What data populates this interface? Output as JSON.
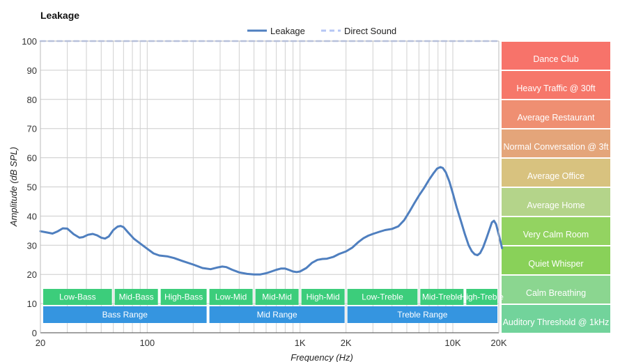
{
  "chart_data": {
    "type": "line",
    "title": "Leakage",
    "xlabel": "Frequency (Hz)",
    "ylabel": "Amplitude (dB SPL)",
    "x_scale": "log",
    "xlim": [
      20,
      20000
    ],
    "ylim": [
      0,
      100
    ],
    "grid": true,
    "legend": "top-center",
    "x_ticks": [
      {
        "value": 20,
        "label": "20"
      },
      {
        "value": 100,
        "label": "100"
      },
      {
        "value": 1000,
        "label": "1K"
      },
      {
        "value": 2000,
        "label": "2K"
      },
      {
        "value": 10000,
        "label": "10K"
      },
      {
        "value": 20000,
        "label": "20K"
      }
    ],
    "y_ticks": [
      0,
      10,
      20,
      30,
      40,
      50,
      60,
      70,
      80,
      90,
      100
    ],
    "series": [
      {
        "name": "Leakage",
        "color": "#4f7fbf",
        "points": [
          [
            20,
            34.8
          ],
          [
            22,
            34.4
          ],
          [
            24,
            34.0
          ],
          [
            26,
            34.8
          ],
          [
            28,
            35.8
          ],
          [
            30,
            35.7
          ],
          [
            33,
            33.8
          ],
          [
            36,
            32.6
          ],
          [
            38,
            32.8
          ],
          [
            41,
            33.6
          ],
          [
            44,
            33.9
          ],
          [
            47,
            33.4
          ],
          [
            50,
            32.6
          ],
          [
            53,
            32.3
          ],
          [
            56,
            33.0
          ],
          [
            60,
            35.2
          ],
          [
            64,
            36.4
          ],
          [
            67,
            36.6
          ],
          [
            70,
            36.2
          ],
          [
            75,
            34.4
          ],
          [
            82,
            32.2
          ],
          [
            90,
            30.6
          ],
          [
            100,
            28.8
          ],
          [
            110,
            27.2
          ],
          [
            120,
            26.5
          ],
          [
            135,
            26.2
          ],
          [
            150,
            25.6
          ],
          [
            170,
            24.6
          ],
          [
            200,
            23.4
          ],
          [
            230,
            22.2
          ],
          [
            260,
            21.8
          ],
          [
            290,
            22.4
          ],
          [
            310,
            22.7
          ],
          [
            330,
            22.5
          ],
          [
            360,
            21.6
          ],
          [
            400,
            20.7
          ],
          [
            450,
            20.2
          ],
          [
            500,
            20.0
          ],
          [
            550,
            20.0
          ],
          [
            600,
            20.4
          ],
          [
            650,
            21.0
          ],
          [
            700,
            21.6
          ],
          [
            750,
            22.0
          ],
          [
            800,
            22.0
          ],
          [
            850,
            21.5
          ],
          [
            900,
            21.0
          ],
          [
            950,
            20.8
          ],
          [
            1000,
            21.0
          ],
          [
            1100,
            22.2
          ],
          [
            1200,
            24.0
          ],
          [
            1300,
            25.0
          ],
          [
            1400,
            25.3
          ],
          [
            1500,
            25.4
          ],
          [
            1650,
            26.0
          ],
          [
            1800,
            27.0
          ],
          [
            2000,
            27.9
          ],
          [
            2200,
            29.2
          ],
          [
            2400,
            31.0
          ],
          [
            2600,
            32.4
          ],
          [
            2800,
            33.3
          ],
          [
            3000,
            33.9
          ],
          [
            3300,
            34.6
          ],
          [
            3600,
            35.2
          ],
          [
            4000,
            35.6
          ],
          [
            4400,
            36.5
          ],
          [
            4800,
            38.6
          ],
          [
            5200,
            41.5
          ],
          [
            5600,
            44.4
          ],
          [
            6000,
            47.0
          ],
          [
            6500,
            49.7
          ],
          [
            7000,
            52.5
          ],
          [
            7500,
            54.8
          ],
          [
            7900,
            56.3
          ],
          [
            8300,
            56.8
          ],
          [
            8600,
            56.5
          ],
          [
            9000,
            55.0
          ],
          [
            9500,
            51.8
          ],
          [
            10000,
            47.8
          ],
          [
            10600,
            43.0
          ],
          [
            11300,
            38.3
          ],
          [
            12000,
            33.8
          ],
          [
            12700,
            30.0
          ],
          [
            13300,
            28.0
          ],
          [
            13900,
            26.9
          ],
          [
            14500,
            26.6
          ],
          [
            15100,
            27.3
          ],
          [
            15800,
            29.3
          ],
          [
            16600,
            32.4
          ],
          [
            17400,
            35.5
          ],
          [
            18000,
            37.8
          ],
          [
            18600,
            38.4
          ],
          [
            19200,
            37.2
          ],
          [
            19800,
            34.5
          ],
          [
            20500,
            31.3
          ],
          [
            21000,
            29.0
          ]
        ]
      },
      {
        "name": "Direct Sound",
        "color": "#b5c6f4",
        "dashed": true,
        "points": [
          [
            20,
            100
          ],
          [
            20000,
            100
          ]
        ]
      }
    ],
    "ranges_row1": [
      {
        "label": "Low-Bass",
        "from": 20,
        "to": 60
      },
      {
        "label": "Mid-Bass",
        "from": 60,
        "to": 120
      },
      {
        "label": "High-Bass",
        "from": 120,
        "to": 250
      },
      {
        "label": "Low-Mid",
        "from": 250,
        "to": 500
      },
      {
        "label": "Mid-Mid",
        "from": 500,
        "to": 1000
      },
      {
        "label": "High-Mid",
        "from": 1000,
        "to": 2000
      },
      {
        "label": "Low-Treble",
        "from": 2000,
        "to": 6000
      },
      {
        "label": "Mid-Treble",
        "from": 6000,
        "to": 12000
      },
      {
        "label": "High-Treble",
        "from": 12000,
        "to": 20000
      }
    ],
    "ranges_row2": [
      {
        "label": "Bass Range",
        "from": 20,
        "to": 250
      },
      {
        "label": "Mid Range",
        "from": 250,
        "to": 2000
      },
      {
        "label": "Treble Range",
        "from": 2000,
        "to": 20000
      }
    ],
    "reference_levels": [
      {
        "label": "Dance Club",
        "color": "#f7736a"
      },
      {
        "label": "Heavy Traffic @ 30ft",
        "color": "#f6776a"
      },
      {
        "label": "Average Restaurant",
        "color": "#ef8f72"
      },
      {
        "label": "Normal Conversation @ 3ft",
        "color": "#e4a57a"
      },
      {
        "label": "Average Office",
        "color": "#d8c27f"
      },
      {
        "label": "Average Home",
        "color": "#b4d48a"
      },
      {
        "label": "Very Calm Room",
        "color": "#93d361"
      },
      {
        "label": "Quiet Whisper",
        "color": "#89d159"
      },
      {
        "label": "Calm Breathing",
        "color": "#8bd690"
      },
      {
        "label": "Auditory Threshold @ 1kHz",
        "color": "#72d39b"
      }
    ]
  }
}
